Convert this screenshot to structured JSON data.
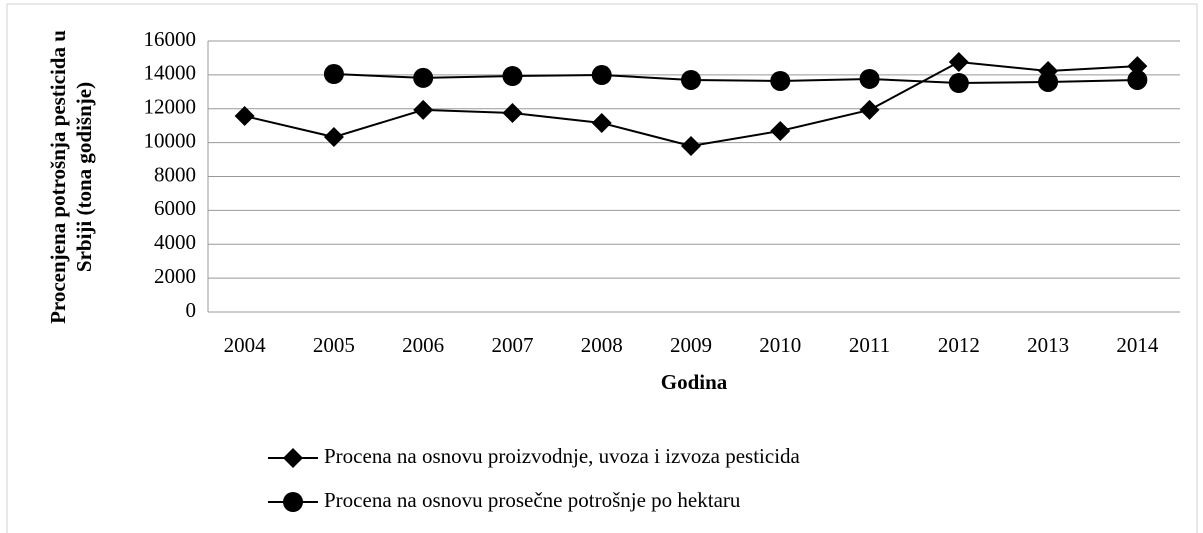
{
  "chart_data": {
    "type": "line",
    "xlabel": "Godina",
    "ylabel": [
      "Procenjena potrošnja pesticida u",
      "Srbiji (tona godišnje)"
    ],
    "categories": [
      "2004",
      "2005",
      "2006",
      "2007",
      "2008",
      "2009",
      "2010",
      "2011",
      "2012",
      "2013",
      "2014"
    ],
    "series": [
      {
        "name": "Procena na osnovu proizvodnje, uvoza i izvoza pesticida",
        "color": "#000000",
        "marker": "diamond",
        "values": [
          11570,
          10330,
          11930,
          11750,
          11160,
          9800,
          10690,
          11930,
          14760,
          14230,
          14520
        ]
      },
      {
        "name": "Procena na osnovu prosečne potrošnje po hektaru",
        "color": "#000000",
        "marker": "circle",
        "values": [
          null,
          14050,
          13820,
          13930,
          13990,
          13700,
          13640,
          13760,
          13520,
          13580,
          13700
        ]
      }
    ],
    "ylim": [
      0,
      16000
    ],
    "yticks": [
      0,
      2000,
      4000,
      6000,
      8000,
      10000,
      12000,
      14000,
      16000
    ],
    "grid": true
  }
}
